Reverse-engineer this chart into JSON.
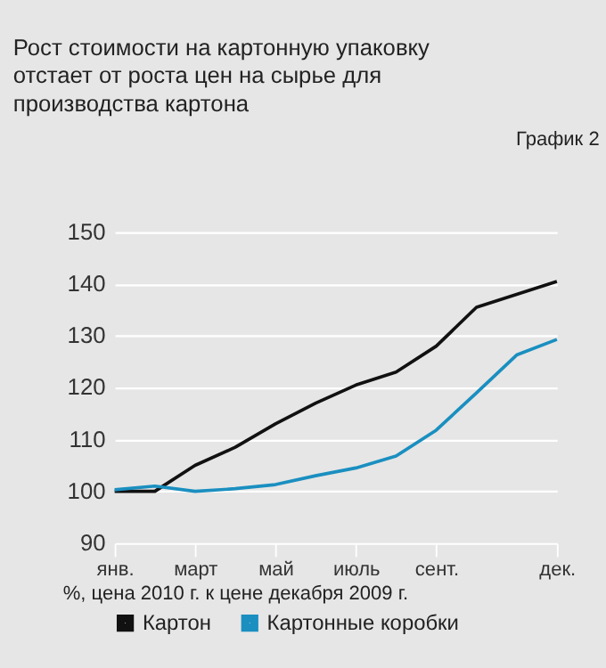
{
  "chart_data": {
    "type": "line",
    "title": "Рост стоимости на картонную упаковку отстает от роста цен на сырье для производства картона",
    "annotations": [
      "График 2"
    ],
    "xlabel": "%, цена 2010 г. к цене декабря 2009 г.",
    "categories": [
      "янв.",
      null,
      "март",
      null,
      "май",
      null,
      "июль",
      null,
      "сент.",
      null,
      null,
      "дек."
    ],
    "series": [
      {
        "name": "Картон",
        "color": "#111111",
        "values": [
          100,
          100,
          105,
          108.5,
          113,
          117,
          120.5,
          123,
          128,
          135.5,
          138,
          140.5
        ]
      },
      {
        "name": "Картонные коробки",
        "color": "#1a8fc0",
        "values": [
          100.3,
          101,
          100,
          100.5,
          101.3,
          103,
          104.5,
          106.8,
          111.8,
          119,
          126.3,
          129.3
        ]
      }
    ],
    "ylim": [
      90,
      150
    ],
    "yticks": [
      90,
      100,
      110,
      120,
      130,
      140,
      150
    ],
    "grid": "y",
    "legend": "bottom",
    "line_style": "solid",
    "marker": "none"
  }
}
